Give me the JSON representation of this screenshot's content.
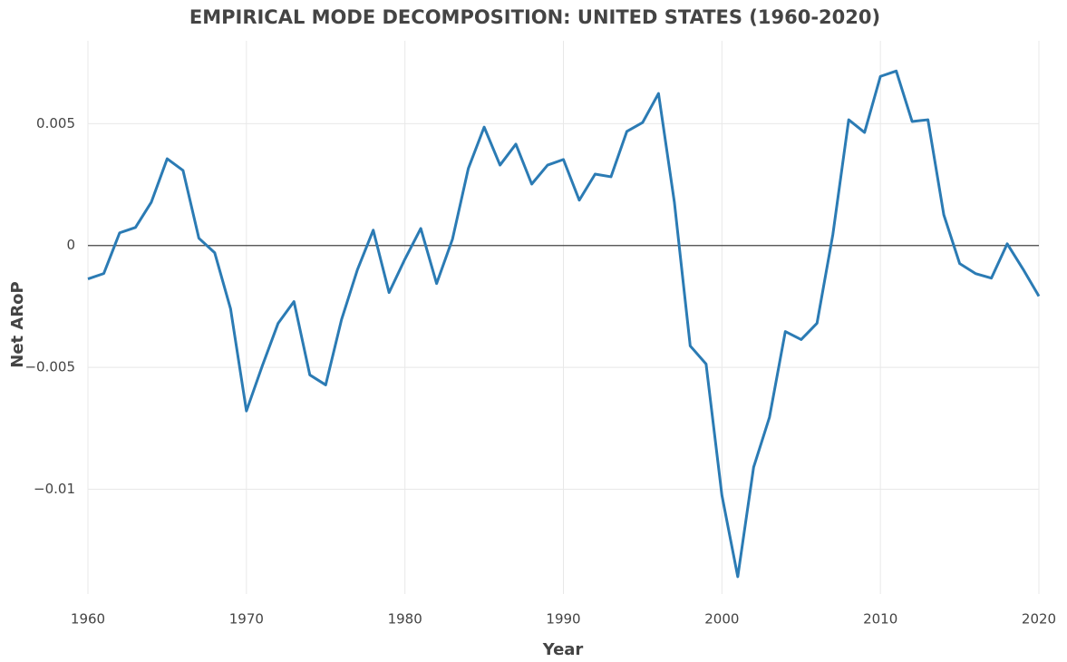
{
  "chart_data": {
    "type": "line",
    "title": "EMPIRICAL MODE DECOMPOSITION: UNITED STATES (1960-2020)",
    "x_label": "Year",
    "y_label": "Net ARoP",
    "x": [
      1960,
      1961,
      1962,
      1963,
      1964,
      1965,
      1966,
      1967,
      1968,
      1969,
      1970,
      1971,
      1972,
      1973,
      1974,
      1975,
      1976,
      1977,
      1978,
      1979,
      1980,
      1981,
      1982,
      1983,
      1984,
      1985,
      1986,
      1987,
      1988,
      1989,
      1990,
      1991,
      1992,
      1993,
      1994,
      1995,
      1996,
      1997,
      1998,
      1999,
      2000,
      2001,
      2002,
      2003,
      2004,
      2005,
      2006,
      2007,
      2008,
      2009,
      2010,
      2011,
      2012,
      2013,
      2014,
      2015,
      2016,
      2017,
      2018,
      2019,
      2020
    ],
    "series": [
      {
        "name": "Net ARoP",
        "color": "#2b7bb4",
        "values": [
          -0.00137,
          -0.00115,
          0.00052,
          0.00074,
          0.00178,
          0.00356,
          0.00308,
          0.0003,
          -0.0003,
          -0.0026,
          -0.00679,
          -0.00494,
          -0.00319,
          -0.0023,
          -0.00531,
          -0.00572,
          -0.00304,
          -0.001,
          0.00063,
          -0.00193,
          -0.00056,
          0.0007,
          -0.00156,
          0.00026,
          0.00316,
          0.00486,
          0.0033,
          0.00416,
          0.00252,
          0.0033,
          0.00353,
          0.00186,
          0.00293,
          0.00282,
          0.00468,
          0.00505,
          0.00624,
          0.00178,
          -0.00412,
          -0.00486,
          -0.01025,
          -0.01359,
          -0.0091,
          -0.00705,
          -0.00353,
          -0.00386,
          -0.00319,
          0.00045,
          0.00516,
          0.00464,
          0.00694,
          0.00716,
          0.00509,
          0.00516,
          0.00126,
          -0.00074,
          -0.00115,
          -0.00134,
          7e-05,
          -0.00097,
          -0.00208
        ]
      }
    ],
    "xlim": [
      1960,
      2020
    ],
    "xticks": [
      1960,
      1970,
      1980,
      1990,
      2000,
      2010,
      2020
    ],
    "ylim": [
      -0.0143,
      0.0084
    ],
    "yticks": [
      {
        "value": -0.01,
        "label": "−0.01"
      },
      {
        "value": -0.005,
        "label": "−0.005"
      },
      0,
      0.005
    ],
    "grid": true
  }
}
